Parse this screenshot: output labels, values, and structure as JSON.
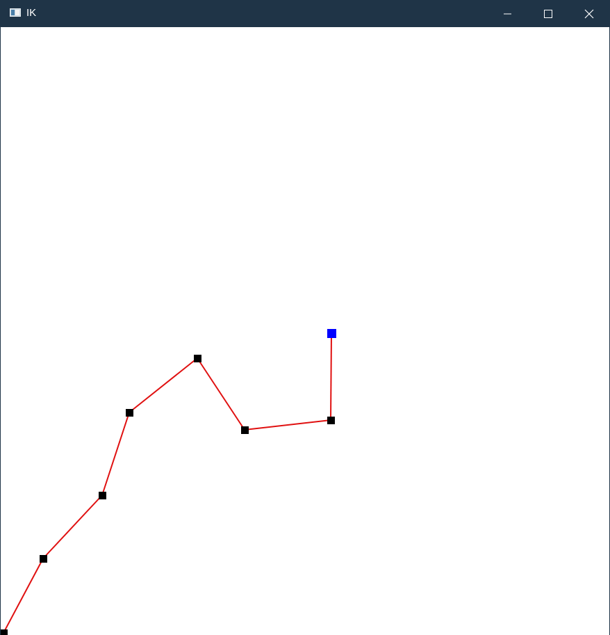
{
  "window": {
    "title": "IK",
    "icon": "app-window-icon",
    "controls": {
      "minimize_icon": "minimize-icon",
      "maximize_icon": "maximize-icon",
      "close_icon": "close-icon"
    }
  },
  "scene": {
    "segment_color": "#e01010",
    "joint_color": "#000000",
    "target_color": "#0000ff",
    "background_color": "#ffffff"
  }
}
